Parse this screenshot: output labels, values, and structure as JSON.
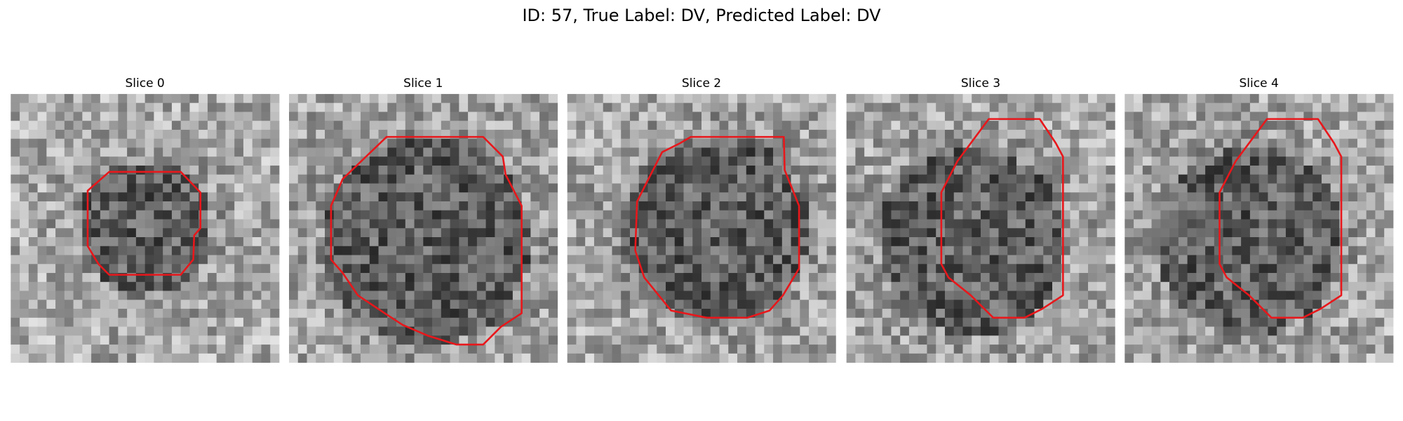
{
  "title": "ID: 57, True Label: DV, Predicted Label: DV",
  "panels": [
    {
      "title": "Slice 0"
    },
    {
      "title": "Slice 1"
    },
    {
      "title": "Slice 2"
    },
    {
      "title": "Slice 3"
    },
    {
      "title": "Slice 4"
    }
  ]
}
